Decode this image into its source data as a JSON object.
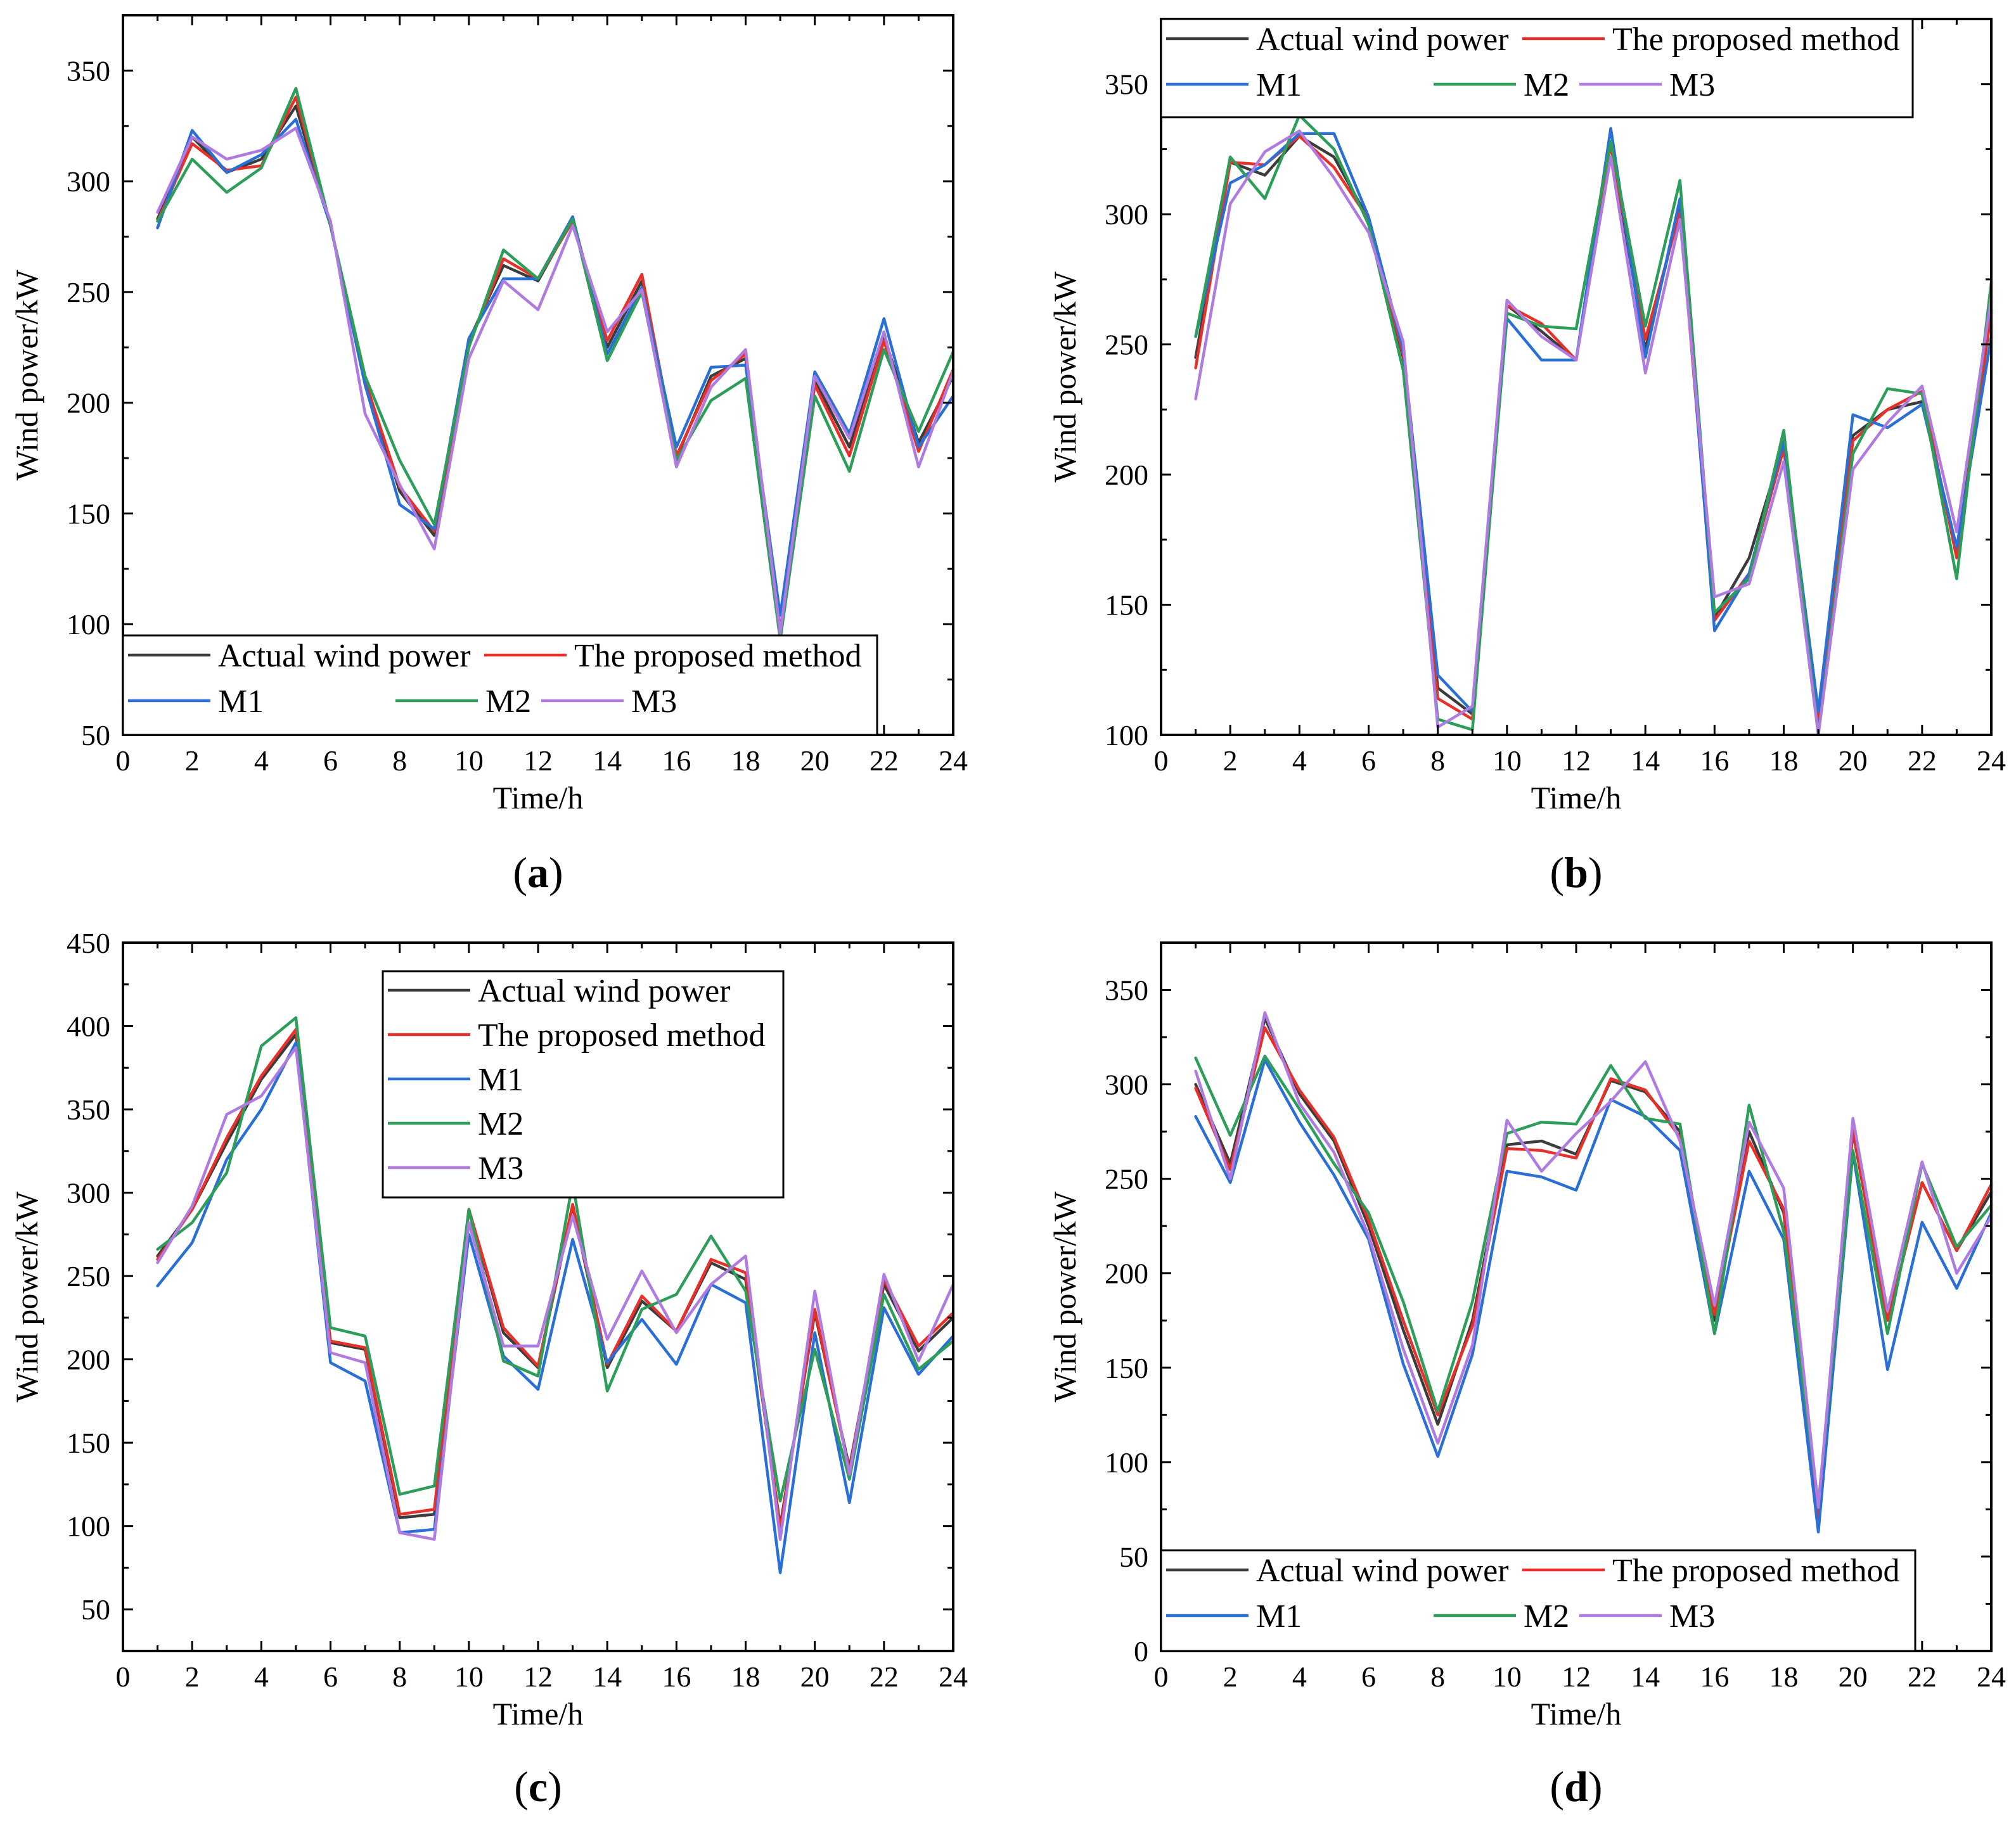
{
  "figure": {
    "legend_labels": [
      "Actual wind power",
      "The proposed method",
      "M1",
      "M2",
      "M3"
    ],
    "series_colors": {
      "Actual wind power": "#3c3c3c",
      "The proposed method": "#e8302a",
      "M1": "#2a6fd6",
      "M2": "#2c9e5a",
      "M3": "#b07be0"
    }
  },
  "chart_data": [
    {
      "id": "a",
      "type": "line",
      "caption": {
        "open": "(",
        "letter": "a",
        "close": ")"
      },
      "xlabel": "Time/h",
      "ylabel": "Wind power/kW",
      "xlim": [
        0,
        24
      ],
      "ylim": [
        50,
        375
      ],
      "xticks": [
        0,
        2,
        4,
        6,
        8,
        10,
        12,
        14,
        16,
        18,
        20,
        22,
        24
      ],
      "yticks": [
        50,
        100,
        150,
        200,
        250,
        300,
        350
      ],
      "legend": "bottom-left",
      "x": [
        1,
        2,
        3,
        4,
        5,
        6,
        7,
        8,
        9,
        10,
        11,
        12,
        13,
        14,
        15,
        16,
        17,
        18,
        19,
        20,
        21,
        22,
        23,
        24
      ],
      "series": [
        {
          "name": "Actual wind power",
          "values": [
            283,
            320,
            304,
            310,
            334,
            280,
            210,
            160,
            140,
            228,
            262,
            255,
            283,
            225,
            255,
            175,
            212,
            220,
            97,
            210,
            180,
            230,
            182,
            212
          ]
        },
        {
          "name": "The proposed method",
          "values": [
            282,
            317,
            305,
            307,
            338,
            280,
            210,
            162,
            142,
            226,
            265,
            256,
            282,
            228,
            258,
            176,
            210,
            222,
            97,
            208,
            176,
            228,
            178,
            215
          ]
        },
        {
          "name": "M1",
          "values": [
            279,
            323,
            304,
            312,
            328,
            280,
            208,
            154,
            143,
            229,
            256,
            256,
            284,
            222,
            252,
            180,
            216,
            217,
            104,
            214,
            186,
            238,
            180,
            203
          ]
        },
        {
          "name": "M2",
          "values": [
            282,
            310,
            295,
            306,
            342,
            280,
            212,
            174,
            145,
            225,
            269,
            256,
            283,
            219,
            250,
            174,
            201,
            211,
            93,
            203,
            169,
            224,
            187,
            223
          ]
        },
        {
          "name": "M3",
          "values": [
            286,
            320,
            310,
            314,
            324,
            282,
            195,
            163,
            134,
            220,
            255,
            242,
            280,
            232,
            251,
            171,
            207,
            224,
            96,
            212,
            184,
            232,
            171,
            214
          ]
        }
      ]
    },
    {
      "id": "b",
      "type": "line",
      "caption": {
        "open": "(",
        "letter": "b",
        "close": ")"
      },
      "xlabel": "Time/h",
      "ylabel": "Wind power/kW",
      "xlim": [
        0,
        24
      ],
      "ylim": [
        100,
        375
      ],
      "xticks": [
        0,
        2,
        4,
        6,
        8,
        10,
        12,
        14,
        16,
        18,
        20,
        22,
        24
      ],
      "yticks": [
        100,
        150,
        200,
        250,
        300,
        350
      ],
      "legend": "top-left",
      "x": [
        1,
        2,
        3,
        4,
        5,
        6,
        7,
        8,
        9,
        10,
        11,
        12,
        13,
        14,
        15,
        16,
        17,
        18,
        19,
        20,
        21,
        22,
        23,
        24
      ],
      "series": [
        {
          "name": "Actual wind power",
          "values": [
            245,
            320,
            315,
            330,
            322,
            298,
            245,
            118,
            108,
            265,
            255,
            244,
            327,
            248,
            303,
            145,
            168,
            212,
            103,
            215,
            225,
            228,
            170,
            262
          ]
        },
        {
          "name": "The proposed method",
          "values": [
            241,
            320,
            319,
            330,
            318,
            298,
            246,
            114,
            106,
            265,
            258,
            244,
            327,
            252,
            301,
            144,
            162,
            210,
            104,
            213,
            225,
            232,
            168,
            263
          ]
        },
        {
          "name": "M1",
          "values": [
            253,
            312,
            319,
            331,
            331,
            299,
            248,
            123,
            109,
            260,
            244,
            244,
            333,
            245,
            306,
            140,
            162,
            213,
            109,
            223,
            218,
            227,
            172,
            253
          ]
        },
        {
          "name": "M2",
          "values": [
            253,
            322,
            306,
            338,
            325,
            296,
            240,
            106,
            102,
            262,
            257,
            256,
            328,
            257,
            313,
            147,
            160,
            217,
            100,
            208,
            233,
            231,
            160,
            274
          ]
        },
        {
          "name": "M3",
          "values": [
            229,
            304,
            324,
            332,
            314,
            293,
            251,
            103,
            111,
            267,
            253,
            244,
            322,
            239,
            298,
            153,
            158,
            205,
            100,
            202,
            220,
            234,
            178,
            268
          ]
        }
      ]
    },
    {
      "id": "c",
      "type": "line",
      "caption": {
        "open": "(",
        "letter": "c",
        "close": ")"
      },
      "xlabel": "Time/h",
      "ylabel": "Wind power/kW",
      "xlim": [
        0,
        24
      ],
      "ylim": [
        25,
        450
      ],
      "xticks": [
        0,
        2,
        4,
        6,
        8,
        10,
        12,
        14,
        16,
        18,
        20,
        22,
        24
      ],
      "yticks": [
        50,
        100,
        150,
        200,
        250,
        300,
        350,
        400,
        450
      ],
      "legend": "top-center",
      "x": [
        1,
        2,
        3,
        4,
        5,
        6,
        7,
        8,
        9,
        10,
        11,
        12,
        13,
        14,
        15,
        16,
        17,
        18,
        19,
        20,
        21,
        22,
        23,
        24
      ],
      "series": [
        {
          "name": "Actual wind power",
          "values": [
            262,
            290,
            330,
            368,
            395,
            210,
            206,
            105,
            107,
            290,
            216,
            195,
            292,
            195,
            235,
            217,
            258,
            248,
            100,
            228,
            135,
            245,
            205,
            225
          ]
        },
        {
          "name": "The proposed method",
          "values": [
            260,
            290,
            333,
            370,
            398,
            211,
            207,
            107,
            110,
            290,
            219,
            196,
            293,
            197,
            238,
            217,
            260,
            252,
            98,
            230,
            133,
            248,
            208,
            228
          ]
        },
        {
          "name": "M1",
          "values": [
            244,
            270,
            320,
            350,
            390,
            198,
            187,
            96,
            98,
            275,
            202,
            182,
            272,
            198,
            224,
            197,
            245,
            234,
            72,
            216,
            114,
            231,
            191,
            214
          ]
        },
        {
          "name": "M2",
          "values": [
            266,
            282,
            312,
            388,
            405,
            219,
            214,
            119,
            124,
            290,
            199,
            190,
            306,
            181,
            230,
            239,
            274,
            241,
            115,
            206,
            128,
            239,
            194,
            211
          ]
        },
        {
          "name": "M3",
          "values": [
            258,
            292,
            347,
            358,
            387,
            204,
            198,
            96,
            92,
            282,
            208,
            208,
            286,
            212,
            253,
            216,
            245,
            262,
            92,
            241,
            131,
            251,
            199,
            245
          ]
        }
      ]
    },
    {
      "id": "d",
      "type": "line",
      "caption": {
        "open": "(",
        "letter": "d",
        "close": ")"
      },
      "xlabel": "Time/h",
      "ylabel": "Wind power/kW",
      "xlim": [
        0,
        24
      ],
      "ylim": [
        0,
        375
      ],
      "xticks": [
        0,
        2,
        4,
        6,
        8,
        10,
        12,
        14,
        16,
        18,
        20,
        22,
        24
      ],
      "yticks": [
        0,
        50,
        100,
        150,
        200,
        250,
        300,
        350
      ],
      "legend": "bottom-left",
      "x": [
        1,
        2,
        3,
        4,
        5,
        6,
        7,
        8,
        9,
        10,
        11,
        12,
        13,
        14,
        15,
        16,
        17,
        18,
        19,
        20,
        21,
        22,
        23,
        24
      ],
      "series": [
        {
          "name": "Actual wind power",
          "values": [
            300,
            258,
            335,
            295,
            270,
            225,
            170,
            120,
            175,
            268,
            270,
            263,
            302,
            296,
            275,
            175,
            275,
            232,
            67,
            275,
            175,
            248,
            212,
            243
          ]
        },
        {
          "name": "The proposed method",
          "values": [
            298,
            255,
            330,
            297,
            272,
            228,
            175,
            125,
            172,
            266,
            265,
            261,
            303,
            297,
            272,
            178,
            270,
            234,
            70,
            276,
            175,
            248,
            212,
            247
          ]
        },
        {
          "name": "M1",
          "values": [
            283,
            248,
            313,
            280,
            252,
            218,
            152,
            103,
            157,
            254,
            251,
            244,
            292,
            283,
            265,
            168,
            254,
            218,
            63,
            264,
            149,
            227,
            192,
            232
          ]
        },
        {
          "name": "M2",
          "values": [
            314,
            273,
            315,
            287,
            258,
            232,
            185,
            127,
            185,
            274,
            280,
            279,
            310,
            282,
            279,
            168,
            289,
            222,
            78,
            265,
            168,
            258,
            214,
            236
          ]
        },
        {
          "name": "M3",
          "values": [
            307,
            250,
            338,
            290,
            264,
            220,
            160,
            110,
            162,
            281,
            254,
            274,
            291,
            312,
            270,
            183,
            280,
            245,
            76,
            282,
            180,
            259,
            200,
            230
          ]
        }
      ]
    }
  ]
}
